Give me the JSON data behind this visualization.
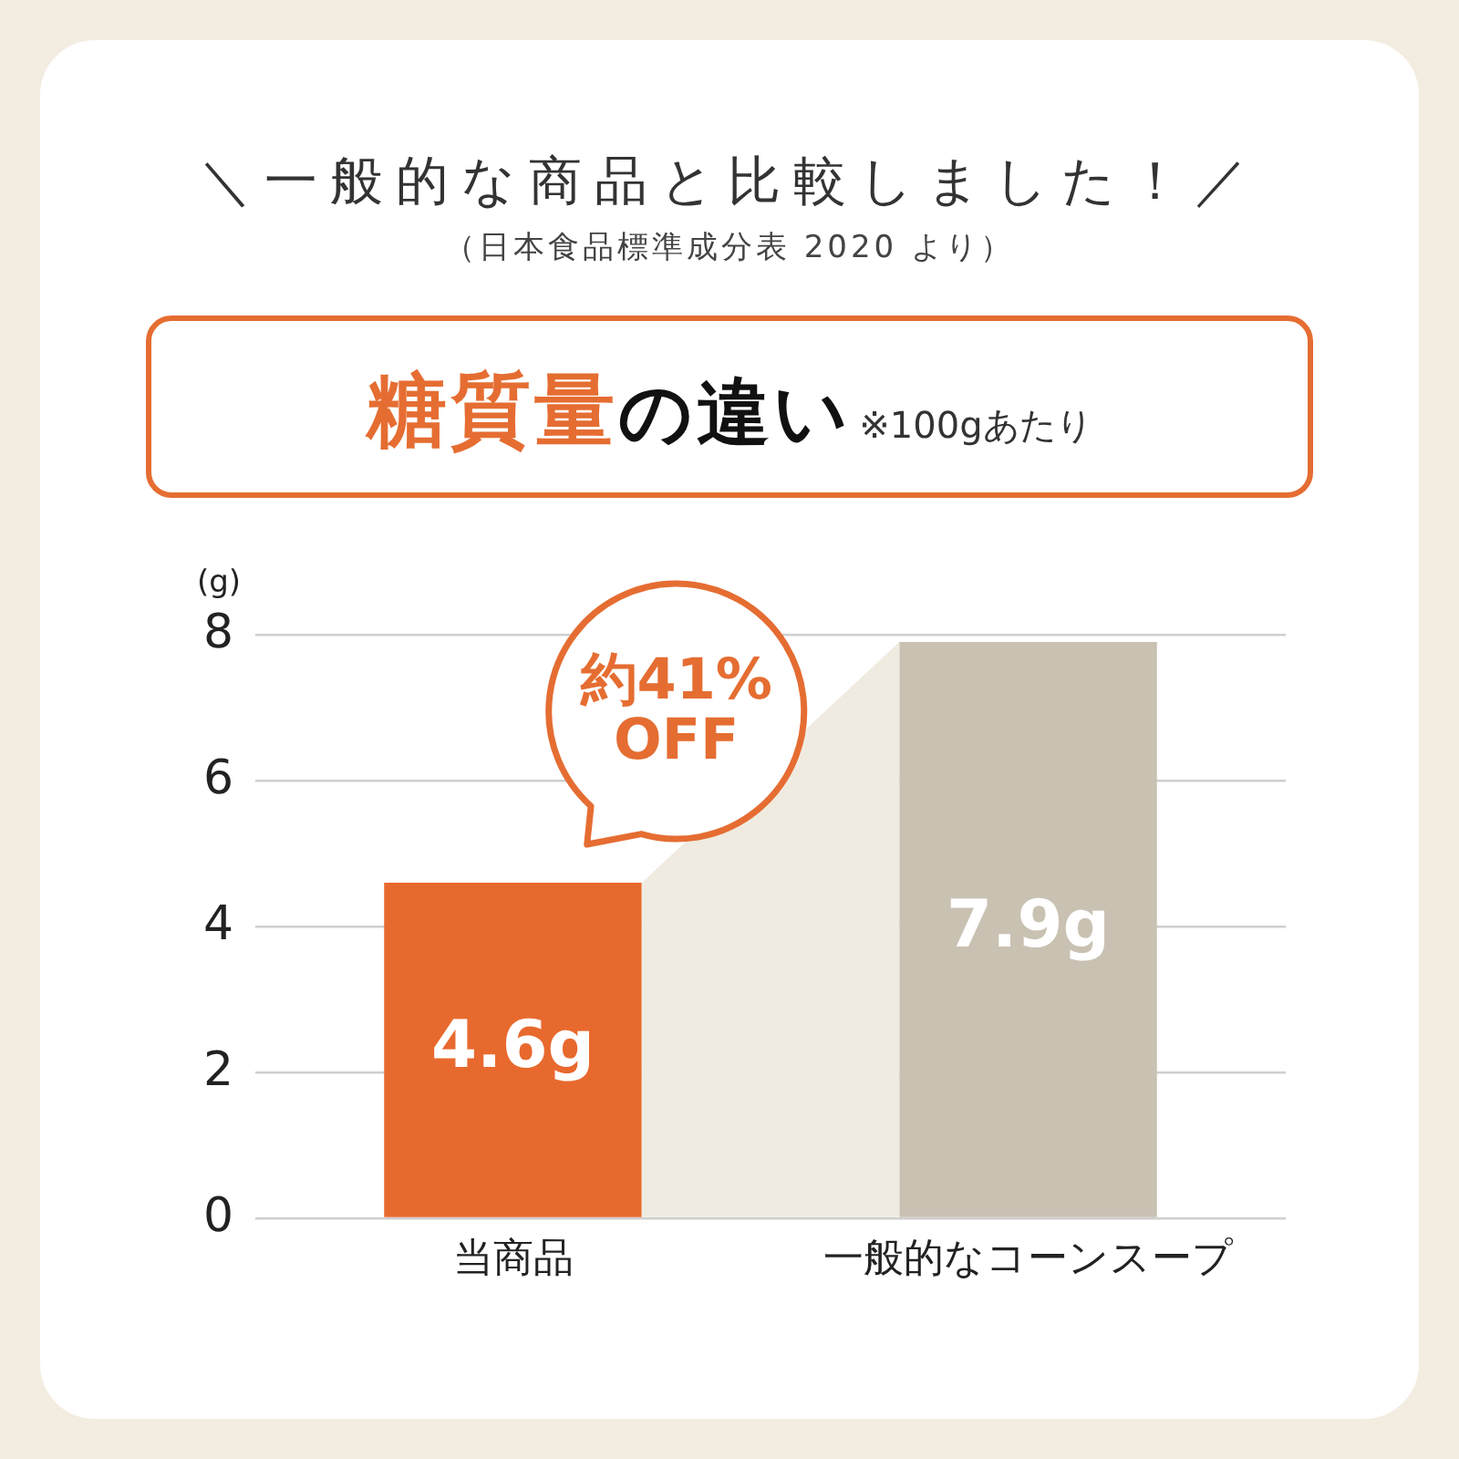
{
  "chart_data": {
    "type": "bar",
    "title": "＼一般的な商品と比較しました！／",
    "subtitle": "（日本食品標準成分表 2020 より）",
    "ylabel": "(g)",
    "categories": [
      "当商品",
      "一般的なコーンスープ"
    ],
    "values": [
      4.6,
      7.9
    ],
    "colors": [
      "#e8692e",
      "#c9c1b2"
    ],
    "value_labels": [
      "4.6g",
      "7.9g"
    ],
    "ylim": [
      0,
      8
    ],
    "yticks": [
      0,
      2,
      4,
      6,
      8
    ],
    "grid": "y",
    "annotations": [
      "糖質量",
      "の違い",
      "※100gあたり",
      "約41% OFF"
    ]
  }
}
